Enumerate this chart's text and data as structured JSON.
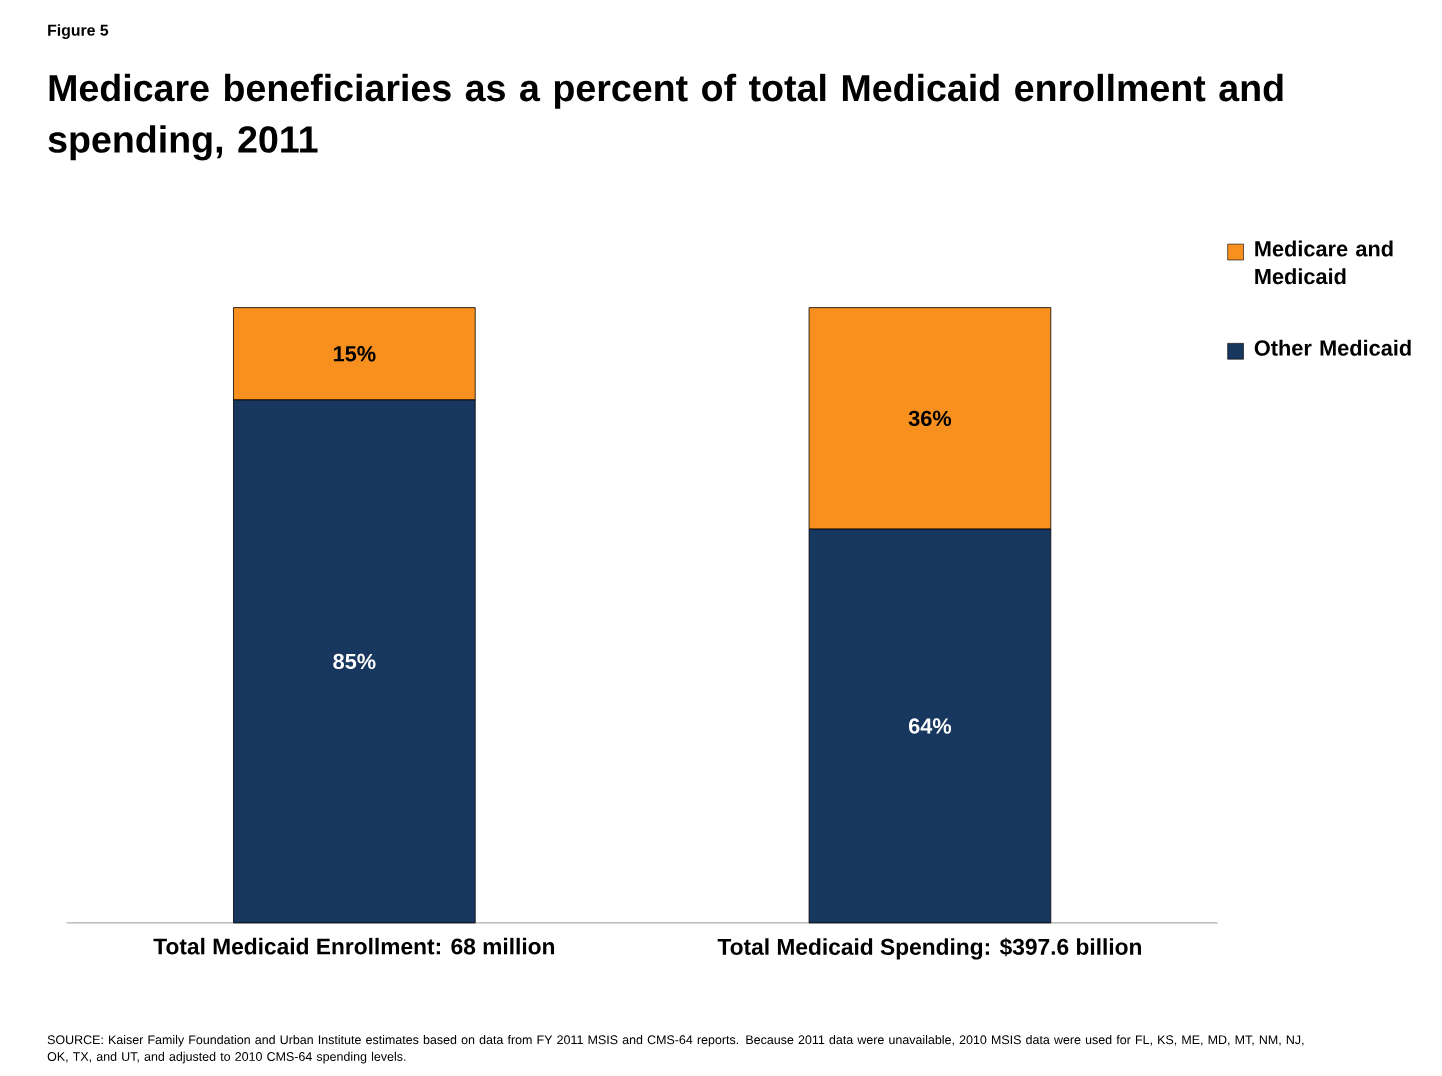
{
  "chart_data": {
    "type": "bar",
    "stacked": true,
    "title": "Medicare beneficiaries as a percent of total Medicaid enrollment and spending, 2011",
    "annotations": [
      "Figure 5",
      "SOURCE: Kaiser Family Foundation and Urban Institute estimates based on data from FY 2011 MSIS and CMS-64 reports. Because 2011 data were unavailable, 2010 MSIS data were used for FL, KS, ME, MD, MT, NM, NJ, OK, TX, and UT, and adjusted to 2010 CMS-64 spending levels."
    ],
    "categories": [
      "Total Medicaid Enrollment:  68 million",
      "Total Medicaid Spending:  $397.6 billion"
    ],
    "series": [
      {
        "name": "Other Medicaid",
        "color": "#17375e",
        "values": [
          85,
          64
        ],
        "value_labels": [
          "85%",
          "64%"
        ]
      },
      {
        "name": "Medicare and Medicaid",
        "color": "#f7901e",
        "values": [
          15,
          36
        ],
        "value_labels": [
          "15%",
          "36%"
        ]
      }
    ],
    "legend": "top right",
    "tick_labels": "x"
  }
}
